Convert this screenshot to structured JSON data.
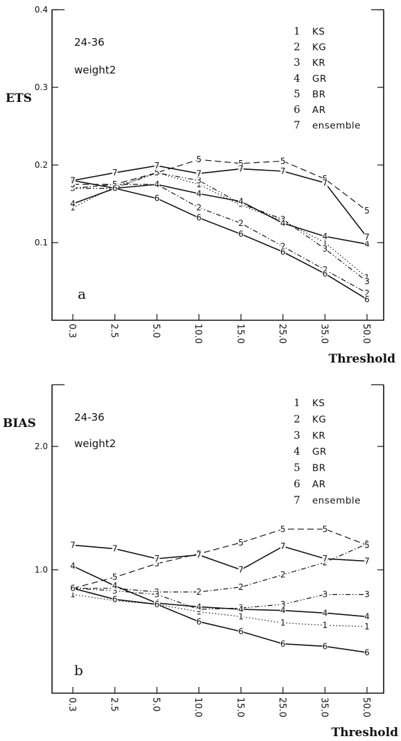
{
  "chart_data": [
    {
      "type": "line",
      "panel_label": "a",
      "ylabel": "ETS",
      "xlabel": "Threshold",
      "annotation_line1": "24-36",
      "annotation_line2": "weight2",
      "categories": [
        "0.3",
        "2.5",
        "5.0",
        "10.0",
        "15.0",
        "25.0",
        "35.0",
        "50.0"
      ],
      "ylim": [
        0,
        0.4
      ],
      "yticks": [
        "0.1",
        "0.2",
        "0.3",
        "0.4"
      ],
      "legend_position": "top-right",
      "series": [
        {
          "marker": "1",
          "name": "KS",
          "dash": "1.5,3",
          "values": [
            0.145,
            0.172,
            0.19,
            0.175,
            0.148,
            0.128,
            0.1,
            0.055
          ]
        },
        {
          "marker": "2",
          "name": "KG",
          "dash": "7,3,1.5,3",
          "values": [
            0.17,
            0.175,
            0.175,
            0.145,
            0.125,
            0.095,
            0.065,
            0.035
          ]
        },
        {
          "marker": "3",
          "name": "KR",
          "dash": "7,3,1.5,3,1.5,3",
          "values": [
            0.17,
            0.17,
            0.19,
            0.18,
            0.15,
            0.13,
            0.092,
            0.05
          ]
        },
        {
          "marker": "4",
          "name": "GR",
          "dash": "",
          "values": [
            0.15,
            0.17,
            0.175,
            0.163,
            0.153,
            0.125,
            0.108,
            0.098
          ]
        },
        {
          "marker": "5",
          "name": "BR",
          "dash": "9,5",
          "values": [
            0.175,
            0.175,
            0.19,
            0.207,
            0.202,
            0.205,
            0.182,
            0.141
          ]
        },
        {
          "marker": "6",
          "name": "AR",
          "dash": "",
          "values": [
            0.18,
            0.17,
            0.157,
            0.132,
            0.111,
            0.088,
            0.06,
            0.027
          ]
        },
        {
          "marker": "7",
          "name": "ensemble",
          "dash": "",
          "values": [
            0.18,
            0.19,
            0.199,
            0.189,
            0.195,
            0.192,
            0.177,
            0.107
          ]
        }
      ]
    },
    {
      "type": "line",
      "panel_label": "b",
      "ylabel": "BIAS",
      "xlabel": "Threshold",
      "annotation_line1": "24-36",
      "annotation_line2": "weight2",
      "categories": [
        "0.3",
        "2.5",
        "5.0",
        "10.0",
        "15.0",
        "25.0",
        "35.0",
        "50.0"
      ],
      "ylim": [
        0,
        2.5
      ],
      "yticks": [
        "1.0",
        "2.0"
      ],
      "legend_position": "top-right",
      "series": [
        {
          "marker": "1",
          "name": "KS",
          "dash": "1.5,3",
          "values": [
            0.8,
            0.75,
            0.72,
            0.66,
            0.62,
            0.57,
            0.55,
            0.54
          ]
        },
        {
          "marker": "2",
          "name": "KG",
          "dash": "7,3,1.5,3",
          "values": [
            0.85,
            0.85,
            0.82,
            0.82,
            0.86,
            0.96,
            1.06,
            1.21
          ]
        },
        {
          "marker": "3",
          "name": "KR",
          "dash": "7,3,1.5,3,1.5,3",
          "values": [
            0.85,
            0.83,
            0.8,
            0.68,
            0.69,
            0.72,
            0.8,
            0.8
          ]
        },
        {
          "marker": "4",
          "name": "GR",
          "dash": "",
          "values": [
            1.03,
            0.87,
            0.73,
            0.7,
            0.68,
            0.67,
            0.65,
            0.62
          ]
        },
        {
          "marker": "5",
          "name": "BR",
          "dash": "9,5",
          "values": [
            0.85,
            0.94,
            1.05,
            1.13,
            1.22,
            1.33,
            1.33,
            1.2
          ]
        },
        {
          "marker": "6",
          "name": "AR",
          "dash": "",
          "values": [
            0.85,
            0.76,
            0.72,
            0.58,
            0.5,
            0.4,
            0.38,
            0.33
          ]
        },
        {
          "marker": "7",
          "name": "ensemble",
          "dash": "",
          "values": [
            1.2,
            1.17,
            1.09,
            1.12,
            1.0,
            1.19,
            1.09,
            1.07
          ]
        }
      ]
    }
  ]
}
